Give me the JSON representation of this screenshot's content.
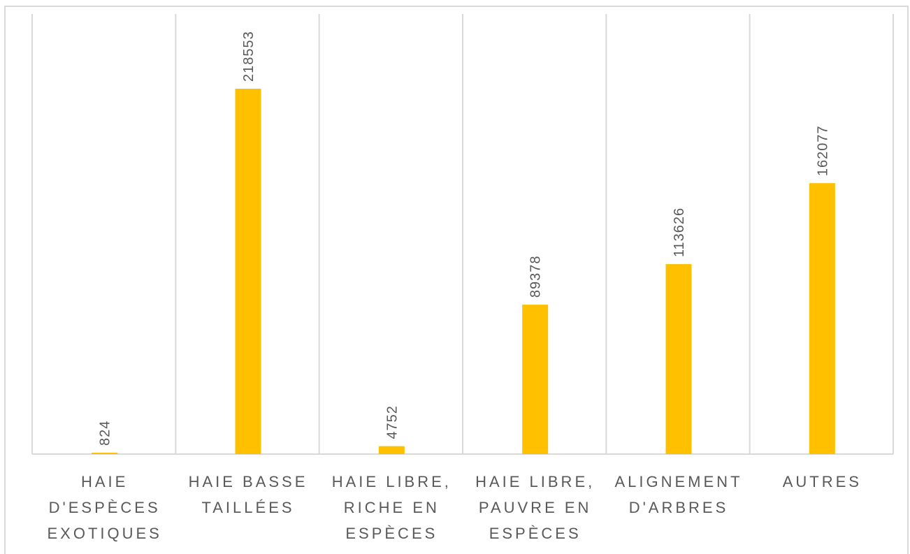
{
  "chart_data": {
    "type": "bar",
    "title": "",
    "xlabel": "",
    "ylabel": "",
    "categories": [
      [
        "HAIE",
        "D'ESPÈCES",
        "EXOTIQUES"
      ],
      [
        "HAIE BASSE",
        "TAILLÉES"
      ],
      [
        "HAIE LIBRE,",
        "RICHE EN",
        "ESPÈCES"
      ],
      [
        "HAIE LIBRE,",
        "PAUVRE EN",
        "ESPÈCES"
      ],
      [
        "ALIGNEMENT",
        "D'ARBRES"
      ],
      [
        "AUTRES"
      ]
    ],
    "values": [
      824,
      218553,
      4752,
      89378,
      113626,
      162077
    ],
    "data_labels": [
      "824",
      "218553",
      "4752",
      "89378",
      "113626",
      "162077"
    ],
    "ylim": [
      0,
      250000
    ],
    "grid": "vertical separators between categories",
    "legend": "none",
    "bar_color": "#ffc000",
    "gridline_color": "#d9d9d9",
    "text_color": "#595959"
  }
}
